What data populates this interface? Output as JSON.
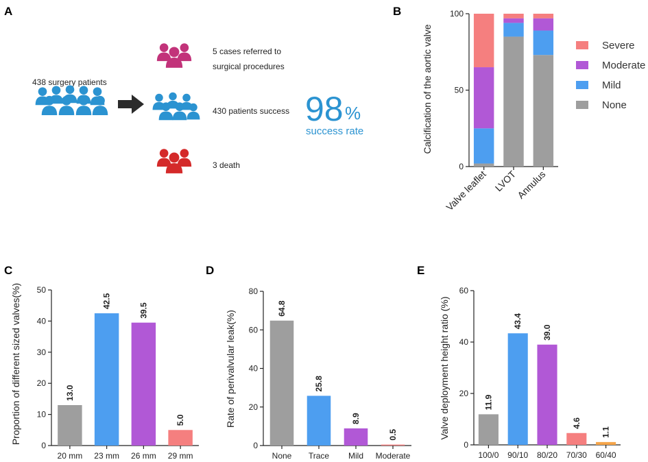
{
  "panel_labels": {
    "a": "A",
    "b": "B",
    "c": "C",
    "d": "D",
    "e": "E"
  },
  "panel_a": {
    "total": "438 surgery patients",
    "referred": [
      "5 cases referred to",
      "surgical procedures"
    ],
    "success": "430 patients success",
    "death": "3 death",
    "rate_number": "98",
    "rate_unit": "%",
    "rate_text": "success rate",
    "colors": {
      "blue": "#2b93d1",
      "magenta": "#c2337a",
      "red": "#d42a2a",
      "arrow": "#2b2b2b"
    },
    "icons": [
      "crowd-icon",
      "arrow-right-icon",
      "people-group-icon"
    ]
  },
  "chart_data": [
    {
      "id": "B",
      "type": "bar",
      "stacked": true,
      "categories": [
        "Valve leaflet",
        "LVOT",
        "Annulus"
      ],
      "series": [
        {
          "name": "None",
          "color": "#9e9e9e",
          "values": [
            2,
            85,
            73
          ]
        },
        {
          "name": "Mild",
          "color": "#4d9ef0",
          "values": [
            23,
            9,
            16
          ]
        },
        {
          "name": "Moderate",
          "color": "#b158d6",
          "values": [
            40,
            3,
            8
          ]
        },
        {
          "name": "Severe",
          "color": "#f57f7f",
          "values": [
            35,
            3,
            3
          ]
        }
      ],
      "legend_order": [
        "Severe",
        "Moderate",
        "Mild",
        "None"
      ],
      "ylabel": "Calcification of the aortic valve",
      "ylim": [
        0,
        100
      ],
      "yticks": [
        0,
        50,
        100
      ],
      "legend": "right"
    },
    {
      "id": "C",
      "type": "bar",
      "categories": [
        "20 mm",
        "23 mm",
        "26 mm",
        "29 mm"
      ],
      "values": [
        13.0,
        42.5,
        39.5,
        5.0
      ],
      "labels": [
        "13.0",
        "42.5",
        "39.5",
        "5.0"
      ],
      "colors": [
        "#9e9e9e",
        "#4d9ef0",
        "#b158d6",
        "#f57f7f"
      ],
      "ylabel": "Proportion of different sized valves(%)",
      "ylim": [
        0,
        50
      ],
      "yticks": [
        0,
        10,
        20,
        30,
        40,
        50
      ]
    },
    {
      "id": "D",
      "type": "bar",
      "categories": [
        "None",
        "Trace",
        "Mild",
        "Moderate"
      ],
      "values": [
        64.8,
        25.8,
        8.9,
        0.5
      ],
      "labels": [
        "64.8",
        "25.8",
        "8.9",
        "0.5"
      ],
      "colors": [
        "#9e9e9e",
        "#4d9ef0",
        "#b158d6",
        "#f57f7f"
      ],
      "ylabel": "Rate of perivalvular leak(%)",
      "ylim": [
        0,
        80
      ],
      "yticks": [
        0,
        20,
        40,
        60,
        80
      ]
    },
    {
      "id": "E",
      "type": "bar",
      "categories": [
        "100/0",
        "90/10",
        "80/20",
        "70/30",
        "60/40"
      ],
      "values": [
        11.9,
        43.4,
        39.0,
        4.6,
        1.1
      ],
      "labels": [
        "11.9",
        "43.4",
        "39.0",
        "4.6",
        "1.1"
      ],
      "colors": [
        "#9e9e9e",
        "#4d9ef0",
        "#b158d6",
        "#f57f7f",
        "#f5a54a"
      ],
      "ylabel": "Valve deployment height ratio (%)",
      "ylim": [
        0,
        60
      ],
      "yticks": [
        0,
        20,
        40,
        60
      ]
    }
  ]
}
